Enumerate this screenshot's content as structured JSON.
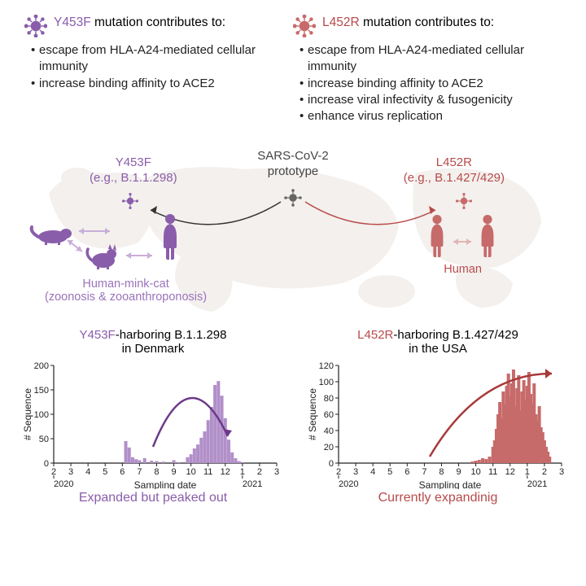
{
  "colors": {
    "purple": "#8a5dab",
    "purple_fill": "#b18fc9",
    "purple_light": "#c9aed8",
    "red": "#b84a4a",
    "red_fill": "#c76a6a",
    "gray": "#666666",
    "map_bg": "#eae4df",
    "text": "#222222"
  },
  "left_mutation": {
    "name": "Y453F",
    "title_rest": "mutation contributes to:",
    "bullets": [
      "escape from HLA-A24-mediated cellular immunity",
      "increase binding affinity to ACE2"
    ]
  },
  "right_mutation": {
    "name": "L452R",
    "title_rest": "mutation contributes to:",
    "bullets": [
      "escape from HLA-A24-mediated cellular immunity",
      "increase binding affinity to ACE2",
      "increase viral infectivity & fusogenicity",
      "enhance virus replication"
    ]
  },
  "map": {
    "center_top": "SARS-CoV-2",
    "center_bottom": "prototype",
    "left_name": "Y453F",
    "left_example": "(e.g., B.1.1.298)",
    "right_name": "L452R",
    "right_example": "(e.g., B.1.427/429)",
    "left_transmission_top": "Human-mink-cat",
    "left_transmission_bottom": "(zoonosis & zooanthroponosis)",
    "right_transmission": "Human"
  },
  "chart_left": {
    "title_name": "Y453F",
    "title_rest": "-harboring B.1.1.298",
    "title_line2": "in Denmark",
    "ylabel": "# Sequence",
    "xlabel": "Sampling date",
    "caption": "Expanded but peaked out",
    "ylim": [
      0,
      200
    ],
    "yticks": [
      0,
      50,
      100,
      150,
      200
    ],
    "xticks": [
      "2",
      "3",
      "4",
      "5",
      "6",
      "7",
      "8",
      "9",
      "10",
      "11",
      "12",
      "1",
      "2",
      "3"
    ],
    "year_marks": {
      "2020": 0,
      "2021": 11
    },
    "bar_color": "#b18fc9",
    "curve_color": "#6b3a8a",
    "bars": [
      {
        "x": 4.2,
        "h": 45
      },
      {
        "x": 4.4,
        "h": 32
      },
      {
        "x": 4.6,
        "h": 12
      },
      {
        "x": 4.8,
        "h": 8
      },
      {
        "x": 5.0,
        "h": 6
      },
      {
        "x": 5.3,
        "h": 10
      },
      {
        "x": 5.7,
        "h": 5
      },
      {
        "x": 6.0,
        "h": 4
      },
      {
        "x": 6.4,
        "h": 3
      },
      {
        "x": 7.0,
        "h": 6
      },
      {
        "x": 7.3,
        "h": 2
      },
      {
        "x": 7.8,
        "h": 12
      },
      {
        "x": 8.0,
        "h": 18
      },
      {
        "x": 8.2,
        "h": 30
      },
      {
        "x": 8.4,
        "h": 38
      },
      {
        "x": 8.6,
        "h": 52
      },
      {
        "x": 8.8,
        "h": 65
      },
      {
        "x": 9.0,
        "h": 88
      },
      {
        "x": 9.2,
        "h": 115
      },
      {
        "x": 9.4,
        "h": 160
      },
      {
        "x": 9.6,
        "h": 168
      },
      {
        "x": 9.8,
        "h": 138
      },
      {
        "x": 10.0,
        "h": 92
      },
      {
        "x": 10.2,
        "h": 48
      },
      {
        "x": 10.4,
        "h": 22
      },
      {
        "x": 10.6,
        "h": 10
      },
      {
        "x": 10.8,
        "h": 4
      },
      {
        "x": 11.0,
        "h": 2
      }
    ]
  },
  "chart_right": {
    "title_name": "L452R",
    "title_rest": "-harboring B.1.427/429",
    "title_line2": "in the USA",
    "ylabel": "# Sequence",
    "xlabel": "Sampling date",
    "caption": "Currently expandinig",
    "ylim": [
      0,
      120
    ],
    "yticks": [
      0,
      20,
      40,
      60,
      80,
      100,
      120
    ],
    "xticks": [
      "2",
      "3",
      "4",
      "5",
      "6",
      "7",
      "8",
      "9",
      "10",
      "11",
      "12",
      "1",
      "2",
      "3"
    ],
    "year_marks": {
      "2020": 0,
      "2021": 11
    },
    "bar_color": "#c76a6a",
    "curve_color": "#a83a3a",
    "bars": [
      {
        "x": 7.8,
        "h": 2
      },
      {
        "x": 8.0,
        "h": 3
      },
      {
        "x": 8.2,
        "h": 4
      },
      {
        "x": 8.4,
        "h": 6
      },
      {
        "x": 8.6,
        "h": 5
      },
      {
        "x": 8.8,
        "h": 8
      },
      {
        "x": 9.0,
        "h": 20
      },
      {
        "x": 9.1,
        "h": 28
      },
      {
        "x": 9.2,
        "h": 42
      },
      {
        "x": 9.3,
        "h": 60
      },
      {
        "x": 9.4,
        "h": 75
      },
      {
        "x": 9.5,
        "h": 55
      },
      {
        "x": 9.6,
        "h": 88
      },
      {
        "x": 9.7,
        "h": 72
      },
      {
        "x": 9.8,
        "h": 95
      },
      {
        "x": 9.9,
        "h": 110
      },
      {
        "x": 10.0,
        "h": 82
      },
      {
        "x": 10.1,
        "h": 98
      },
      {
        "x": 10.2,
        "h": 115
      },
      {
        "x": 10.3,
        "h": 70
      },
      {
        "x": 10.4,
        "h": 92
      },
      {
        "x": 10.5,
        "h": 108
      },
      {
        "x": 10.6,
        "h": 65
      },
      {
        "x": 10.7,
        "h": 88
      },
      {
        "x": 10.8,
        "h": 102
      },
      {
        "x": 10.9,
        "h": 78
      },
      {
        "x": 11.0,
        "h": 95
      },
      {
        "x": 11.1,
        "h": 112
      },
      {
        "x": 11.2,
        "h": 85
      },
      {
        "x": 11.3,
        "h": 72
      },
      {
        "x": 11.4,
        "h": 98
      },
      {
        "x": 11.5,
        "h": 60
      },
      {
        "x": 11.6,
        "h": 52
      },
      {
        "x": 11.7,
        "h": 70
      },
      {
        "x": 11.8,
        "h": 44
      },
      {
        "x": 11.9,
        "h": 38
      },
      {
        "x": 12.0,
        "h": 28
      },
      {
        "x": 12.1,
        "h": 20
      },
      {
        "x": 12.2,
        "h": 14
      },
      {
        "x": 12.3,
        "h": 8
      }
    ]
  }
}
